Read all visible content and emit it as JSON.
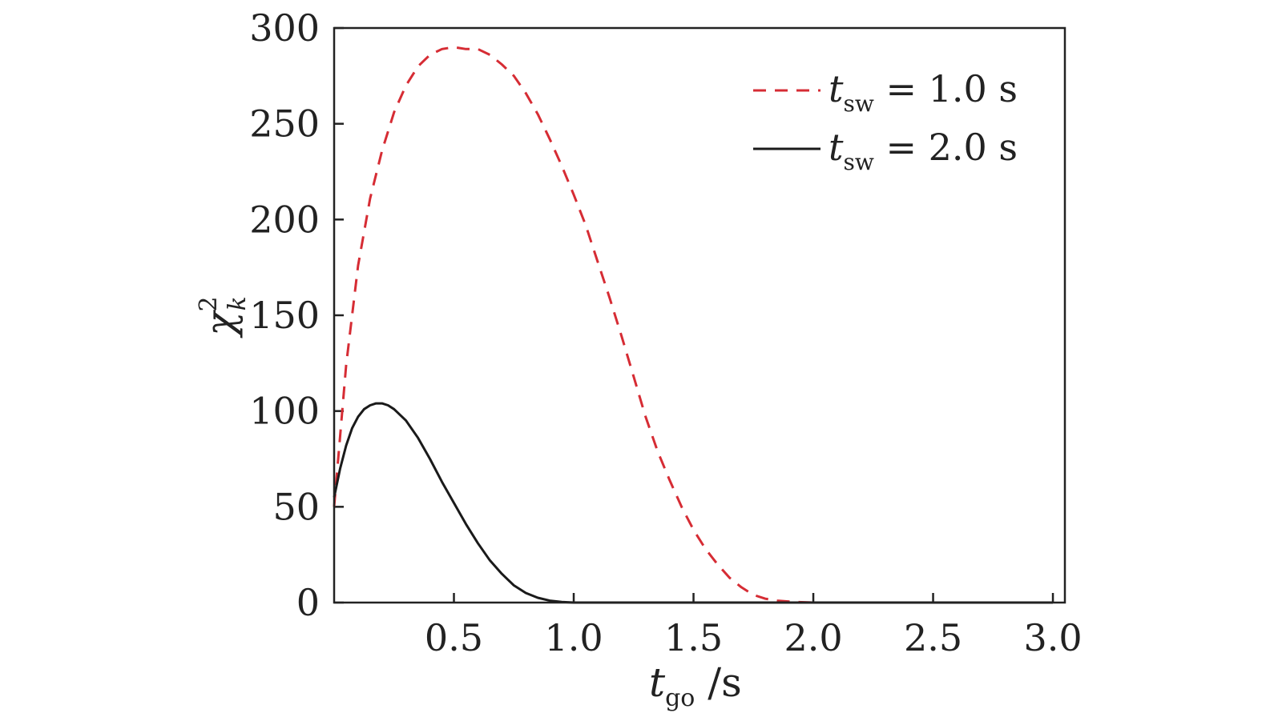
{
  "chart_data": {
    "type": "line",
    "title": "",
    "xlabel": {
      "main": "t",
      "sub": "go",
      "unit": " /s"
    },
    "ylabel": {
      "main": "χ",
      "sup": "2",
      "sub": "k"
    },
    "xlim": [
      0.0,
      3.05
    ],
    "ylim": [
      0,
      300
    ],
    "xticks": [
      0.5,
      1.0,
      1.5,
      2.0,
      2.5,
      3.0
    ],
    "xtick_labels": [
      "0.5",
      "1.0",
      "1.5",
      "2.0",
      "2.5",
      "3.0"
    ],
    "yticks": [
      0,
      50,
      100,
      150,
      200,
      250,
      300
    ],
    "ytick_labels": [
      "0",
      "50",
      "100",
      "150",
      "200",
      "250",
      "300"
    ],
    "grid": false,
    "legend_position": "top-right",
    "series": [
      {
        "name": "t_sw = 1.0 s",
        "legend": {
          "main": "t",
          "sub": "sw",
          "rest": " = 1.0 s"
        },
        "color": "#d62c34",
        "style": "dashed",
        "x": [
          0.0,
          0.05,
          0.1,
          0.15,
          0.2,
          0.25,
          0.3,
          0.35,
          0.4,
          0.45,
          0.5,
          0.55,
          0.6,
          0.65,
          0.7,
          0.75,
          0.8,
          0.85,
          0.9,
          0.95,
          1.0,
          1.05,
          1.1,
          1.15,
          1.2,
          1.25,
          1.3,
          1.35,
          1.4,
          1.45,
          1.5,
          1.55,
          1.6,
          1.65,
          1.7,
          1.75,
          1.8,
          1.85,
          1.9,
          1.95,
          2.0,
          2.1,
          2.3,
          2.5,
          2.7,
          2.9,
          3.0
        ],
        "y": [
          50,
          124,
          176,
          211,
          236,
          256,
          270,
          280,
          286,
          289,
          290,
          289,
          289,
          286,
          281,
          275,
          266,
          255,
          242,
          228,
          213,
          197,
          178,
          159,
          139,
          118,
          97,
          79,
          64,
          50,
          38,
          28,
          20,
          13,
          8,
          4,
          2,
          1,
          0.5,
          0.2,
          0,
          0,
          0,
          0,
          0,
          0,
          0
        ]
      },
      {
        "name": "t_sw = 2.0 s",
        "legend": {
          "main": "t",
          "sub": "sw",
          "rest": " = 2.0 s"
        },
        "color": "#1a1a1a",
        "style": "solid",
        "x": [
          0.0,
          0.025,
          0.05,
          0.075,
          0.1,
          0.125,
          0.15,
          0.175,
          0.2,
          0.225,
          0.25,
          0.3,
          0.35,
          0.4,
          0.45,
          0.5,
          0.55,
          0.6,
          0.65,
          0.7,
          0.75,
          0.8,
          0.85,
          0.9,
          0.95,
          1.0,
          1.1,
          1.3,
          1.5,
          2.0,
          2.5,
          3.0
        ],
        "y": [
          55,
          70,
          82,
          91,
          97,
          101,
          103,
          104,
          104,
          103,
          101,
          95,
          86,
          75,
          63,
          52,
          41,
          31,
          22,
          15,
          9,
          5,
          2.5,
          1,
          0.3,
          0,
          0,
          0,
          0,
          0,
          0,
          0
        ]
      }
    ]
  }
}
